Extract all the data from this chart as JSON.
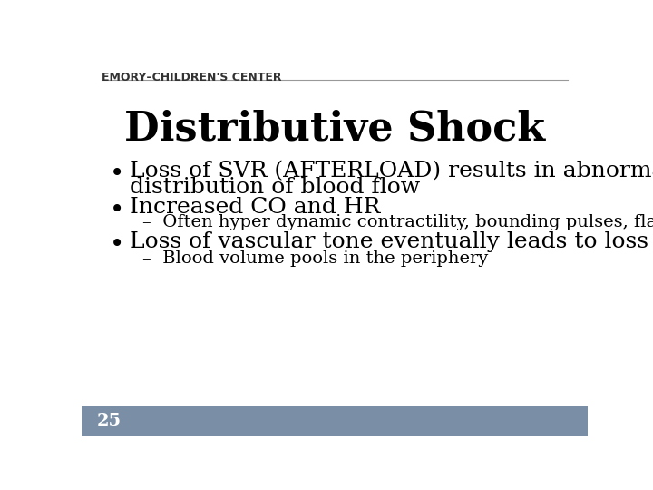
{
  "title": "Distributive Shock",
  "header_text": "EMORY–CHILDREN'S CENTER",
  "header_line_color": "#999999",
  "background_color": "#ffffff",
  "footer_color": "#7a8fa6",
  "footer_text": "25",
  "footer_text_color": "#ffffff",
  "title_fontsize": 32,
  "bullet1_line1": "Loss of SVR (AFTERLOAD) results in abnormal",
  "bullet1_line2": "distribution of blood flow",
  "bullet2": "Increased CO and HR",
  "sub1": "–  Often hyper dynamic contractility, bounding pulses, flash CR",
  "bullet3": "Loss of vascular tone eventually leads to loss of PRELOAD",
  "sub2": "–  Blood volume pools in the periphery",
  "bullet_fontsize": 18,
  "sub_fontsize": 14,
  "header_fontsize": 9,
  "header_color": "#333333",
  "text_color": "#000000"
}
